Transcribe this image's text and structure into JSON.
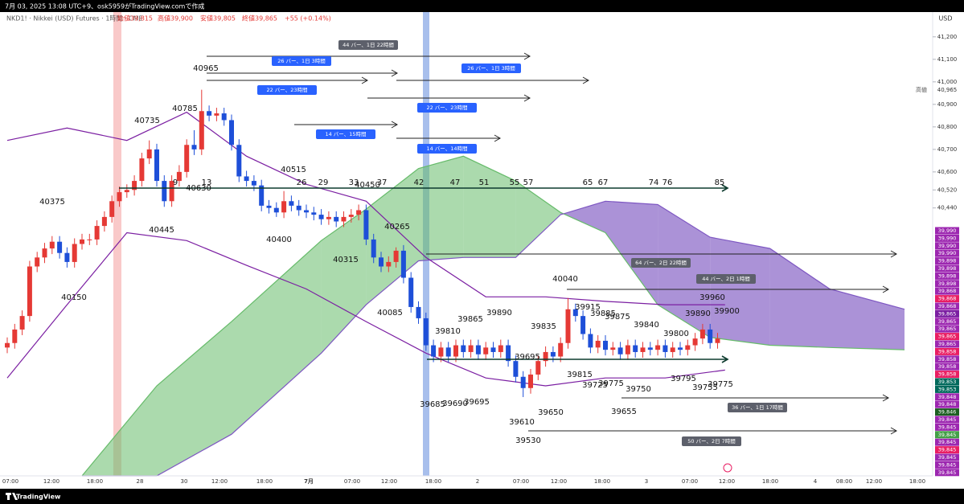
{
  "top_bar": "7月 03, 2025 13:08 UTC+9、osk5959がTradingView.comで作成",
  "legend": {
    "symbol": "NKD1! · Nikkei (USD) Futures · 1時間 · CME",
    "ohlc": [
      "始値39,815",
      "高値39,900",
      "安値39,805",
      "終値39,865",
      "+55 (+0.14%)"
    ]
  },
  "currency": "USD",
  "high_marker": {
    "label": "高値",
    "value": "40,965"
  },
  "chart_data": {
    "type": "candlestick",
    "up_color": "#e53935",
    "down_color": "#1e4fd8",
    "ylim": [
      39250,
      41310
    ],
    "yticks": [
      {
        "value": 41200,
        "label": "41,200"
      },
      {
        "value": 41100,
        "label": "41,100"
      },
      {
        "value": 41000,
        "label": "41,000"
      },
      {
        "value": 40900,
        "label": "40,900"
      },
      {
        "value": 40800,
        "label": "40,800"
      },
      {
        "value": 40700,
        "label": "40,700"
      },
      {
        "value": 40600,
        "label": "40,600"
      },
      {
        "value": 40520,
        "label": "40,520"
      },
      {
        "value": 40440,
        "label": "40,440"
      }
    ],
    "categories": [
      "07:00",
      "12:00",
      "18:00",
      "28",
      "30",
      "12:00",
      "18:00",
      "7月",
      "07:00",
      "12:00",
      "18:00",
      "2",
      "07:00",
      "12:00",
      "18:00",
      "3",
      "07:00",
      "12:00",
      "18:00",
      "4",
      "08:00",
      "12:00",
      "18:00"
    ],
    "open": [
      39820,
      39840,
      39900,
      39960,
      40180,
      40220,
      40260,
      40290,
      40240,
      40200,
      40280,
      40300,
      40300,
      40360,
      40400,
      40470,
      40510,
      40520,
      40560,
      40660,
      40700,
      40560,
      40470,
      40560,
      40600,
      40720,
      40700,
      40870,
      40850,
      40860,
      40830,
      40720,
      40580,
      40560,
      40540,
      40450,
      40440,
      40420,
      40470,
      40450,
      40430,
      40420,
      40410,
      40390,
      40400,
      40380,
      40400,
      40410,
      40430,
      40300,
      40220,
      40180,
      40200,
      40250,
      40130,
      40000,
      39950,
      39830,
      39780,
      39820,
      39780,
      39830,
      39800,
      39830,
      39790,
      39820,
      39800,
      39830,
      39760,
      39690,
      39640,
      39700,
      39760,
      39800,
      39780,
      39840,
      39990,
      39960,
      39880,
      39820,
      39850,
      39810,
      39820,
      39790,
      39830,
      39800,
      39820,
      39810,
      39830,
      39800,
      39820,
      39810,
      39830,
      39860,
      39900,
      39840
    ],
    "high": [
      39865,
      39925,
      39985,
      40205,
      40245,
      40285,
      40315,
      40315,
      40265,
      40305,
      40325,
      40325,
      40385,
      40425,
      40495,
      40535,
      40545,
      40585,
      40685,
      40740,
      40725,
      40585,
      40585,
      40630,
      40745,
      40785,
      40965,
      40895,
      40885,
      40885,
      40855,
      40745,
      40605,
      40585,
      40565,
      40475,
      40465,
      40515,
      40495,
      40475,
      40455,
      40445,
      40435,
      40425,
      40425,
      40425,
      40435,
      40455,
      40455,
      40325,
      40245,
      40225,
      40265,
      40275,
      40155,
      40025,
      39975,
      39855,
      39845,
      39845,
      39855,
      39855,
      39855,
      39855,
      39845,
      39845,
      39855,
      39855,
      39785,
      39715,
      39725,
      39785,
      39825,
      39825,
      39865,
      40040,
      40015,
      39985,
      39905,
      39875,
      39875,
      39845,
      39845,
      39855,
      39855,
      39845,
      39845,
      39855,
      39855,
      39845,
      39845,
      39855,
      39885,
      39925,
      39925,
      39885
    ],
    "low": [
      39795,
      39815,
      39875,
      39935,
      40155,
      40195,
      40235,
      40215,
      40175,
      40175,
      40255,
      40275,
      40275,
      40335,
      40375,
      40445,
      40485,
      40495,
      40535,
      40635,
      40535,
      40445,
      40445,
      40535,
      40575,
      40675,
      40675,
      40825,
      40825,
      40805,
      40695,
      40555,
      40535,
      40515,
      40425,
      40415,
      40400,
      40395,
      40425,
      40405,
      40395,
      40385,
      40365,
      40365,
      40355,
      40355,
      40375,
      40385,
      40275,
      40195,
      40155,
      40155,
      40175,
      40105,
      39975,
      39925,
      39805,
      39755,
      39755,
      39755,
      39755,
      39775,
      39775,
      39765,
      39765,
      39775,
      39775,
      39735,
      39665,
      39600,
      39615,
      39675,
      39735,
      39755,
      39755,
      39815,
      39935,
      39855,
      39795,
      39795,
      39785,
      39785,
      39765,
      39765,
      39775,
      39775,
      39785,
      39785,
      39775,
      39775,
      39785,
      39785,
      39805,
      39835,
      39815,
      39815
    ],
    "close": [
      39840,
      39900,
      39960,
      40180,
      40220,
      40260,
      40290,
      40240,
      40200,
      40280,
      40300,
      40300,
      40360,
      40400,
      40470,
      40510,
      40520,
      40560,
      40660,
      40700,
      40560,
      40470,
      40560,
      40600,
      40720,
      40700,
      40870,
      40850,
      40860,
      40830,
      40720,
      40580,
      40560,
      40540,
      40450,
      40440,
      40420,
      40470,
      40450,
      40430,
      40420,
      40410,
      40390,
      40400,
      40380,
      40400,
      40410,
      40430,
      40300,
      40220,
      40180,
      40200,
      40250,
      40130,
      40000,
      39950,
      39830,
      39780,
      39820,
      39780,
      39830,
      39800,
      39830,
      39790,
      39820,
      39800,
      39830,
      39760,
      39690,
      39640,
      39700,
      39760,
      39800,
      39780,
      39840,
      39990,
      39960,
      39880,
      39820,
      39850,
      39810,
      39820,
      39790,
      39830,
      39800,
      39820,
      39810,
      39830,
      39800,
      39820,
      39810,
      39830,
      39860,
      39900,
      39840,
      39860
    ],
    "cloud": {
      "x": [
        10,
        20,
        30,
        42,
        48,
        55,
        61,
        68,
        74,
        80,
        87,
        94,
        102,
        110,
        120
      ],
      "span_a": [
        39250,
        39650,
        39935,
        40295,
        40435,
        40615,
        40670,
        40560,
        40420,
        40330,
        40010,
        39865,
        39830,
        39820,
        39810
      ],
      "span_b": [
        39250,
        39250,
        39435,
        39795,
        40010,
        40205,
        40220,
        40220,
        40410,
        40470,
        40455,
        40310,
        40260,
        40080,
        39990
      ],
      "up_color": "#66bb6a",
      "down_color": "#7e57c2"
    },
    "bands": {
      "x": [
        0,
        8,
        16,
        24,
        32,
        40,
        48,
        56,
        64,
        72,
        80,
        88,
        96
      ],
      "upper": [
        40740,
        40795,
        40740,
        40865,
        40670,
        40545,
        40470,
        40220,
        40045,
        40045,
        40025,
        40010,
        40010
      ],
      "lower": [
        39685,
        40010,
        40330,
        40295,
        40185,
        40080,
        39935,
        39795,
        39685,
        39650,
        39685,
        39685,
        39720
      ],
      "color": "#7b1fa2"
    }
  },
  "price_labels": [
    "40965",
    "40785",
    "40735",
    "40515",
    "40630",
    "40450",
    "40375",
    "40445",
    "40400",
    "40265",
    "40315",
    "40150",
    "40085",
    "40040",
    "39960",
    "39890",
    "39900",
    "39915",
    "39885",
    "39875",
    "39865",
    "39890",
    "39835",
    "39840",
    "39810",
    "39800",
    "39695",
    "39815",
    "39775",
    "39725",
    "39795",
    "39750",
    "39755",
    "39775",
    "39685",
    "39690",
    "39695",
    "39650",
    "39655",
    "39610",
    "39530"
  ],
  "count_labels": [
    "9",
    "13",
    "26",
    "29",
    "33",
    "37",
    "42",
    "47",
    "51",
    "55",
    "57",
    "65",
    "67",
    "74",
    "76",
    "85"
  ],
  "measure_labels": [
    {
      "text": "44 バー、1日 22時間",
      "color": "#5d606b"
    },
    {
      "text": "26 バー、1日 3時間",
      "color": "#2962ff"
    },
    {
      "text": "26 バー、1日 3時間",
      "color": "#2962ff"
    },
    {
      "text": "22 バー、23時間",
      "color": "#2962ff"
    },
    {
      "text": "22 バー、23時間",
      "color": "#2962ff"
    },
    {
      "text": "14 バー、15時間",
      "color": "#2962ff"
    },
    {
      "text": "14 バー、14時間",
      "color": "#2962ff"
    },
    {
      "text": "64 バー、2日 22時間",
      "color": "#5d606b"
    },
    {
      "text": "44 バー、2日 1時間",
      "color": "#5d606b"
    },
    {
      "text": "36 バー、1日 17時間",
      "color": "#5d606b"
    },
    {
      "text": "50 バー、2日 7時間",
      "color": "#5d606b"
    }
  ],
  "indicator_labels": [
    {
      "label": "39,990",
      "color": "#9c27b0"
    },
    {
      "label": "39,990",
      "color": "#9c27b0"
    },
    {
      "label": "39,990",
      "color": "#9c27b0"
    },
    {
      "label": "39,990",
      "color": "#9c27b0"
    },
    {
      "label": "39,898",
      "color": "#9c27b0"
    },
    {
      "label": "39,898",
      "color": "#9c27b0"
    },
    {
      "label": "39,898",
      "color": "#9c27b0"
    },
    {
      "label": "39,898",
      "color": "#9c27b0"
    },
    {
      "label": "39,868",
      "color": "#9c27b0"
    },
    {
      "label": "39,868",
      "color": "#e91e63"
    },
    {
      "label": "39,868",
      "color": "#9c27b0"
    },
    {
      "label": "39,865",
      "color": "#7b1fa2"
    },
    {
      "label": "39,865",
      "color": "#9c27b0"
    },
    {
      "label": "39,865",
      "color": "#9c27b0"
    },
    {
      "label": "39,865",
      "color": "#e91e63"
    },
    {
      "label": "39,865",
      "color": "#9c27b0"
    },
    {
      "label": "39,858",
      "color": "#e91e63"
    },
    {
      "label": "39,858",
      "color": "#9c27b0"
    },
    {
      "label": "39,858",
      "color": "#9c27b0"
    },
    {
      "label": "39,858",
      "color": "#e91e63"
    },
    {
      "label": "39,853",
      "color": "#00695c"
    },
    {
      "label": "39,853",
      "color": "#00695c"
    },
    {
      "label": "39,848",
      "color": "#9c27b0"
    },
    {
      "label": "39,848",
      "color": "#9c27b0"
    },
    {
      "label": "39,846",
      "color": "#1b5e20"
    },
    {
      "label": "39,845",
      "color": "#9c27b0"
    },
    {
      "label": "39,845",
      "color": "#9c27b0"
    },
    {
      "label": "39,845",
      "color": "#43a047"
    },
    {
      "label": "39,845",
      "color": "#9c27b0"
    },
    {
      "label": "39,845",
      "color": "#e91e63"
    },
    {
      "label": "39,845",
      "color": "#9c27b0"
    },
    {
      "label": "39,845",
      "color": "#9c27b0"
    },
    {
      "label": "39,845",
      "color": "#9c27b0"
    }
  ],
  "brand": "TradingView"
}
